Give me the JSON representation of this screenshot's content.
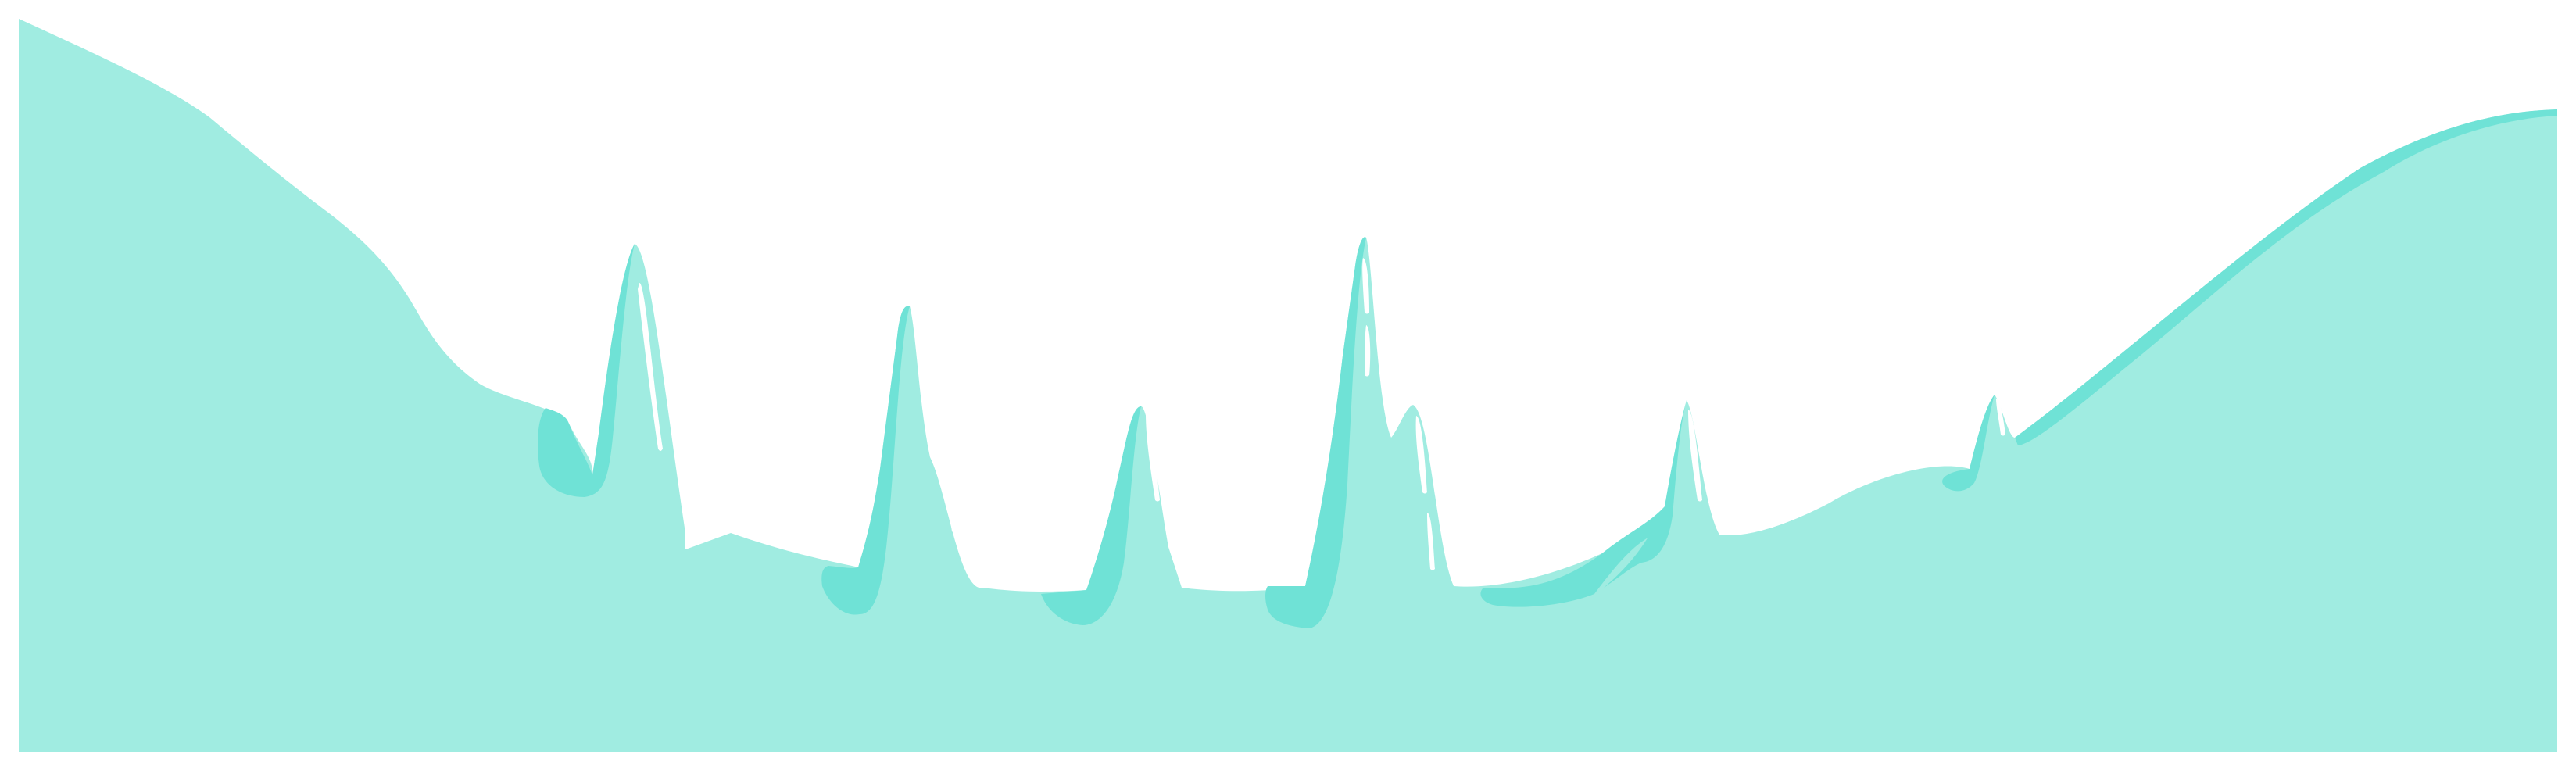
{
  "scene": {
    "subject": "mountain-range-silhouette",
    "colors": {
      "background": "#ffffff",
      "terrain": "#a0ece1",
      "shadow": "#6fe2d6",
      "highlight": "#ffffff"
    },
    "peaks": [
      {
        "name": "peak-1"
      },
      {
        "name": "peak-2"
      },
      {
        "name": "peak-3"
      },
      {
        "name": "peak-4"
      },
      {
        "name": "peak-5"
      },
      {
        "name": "peak-6"
      },
      {
        "name": "peak-7"
      }
    ]
  }
}
